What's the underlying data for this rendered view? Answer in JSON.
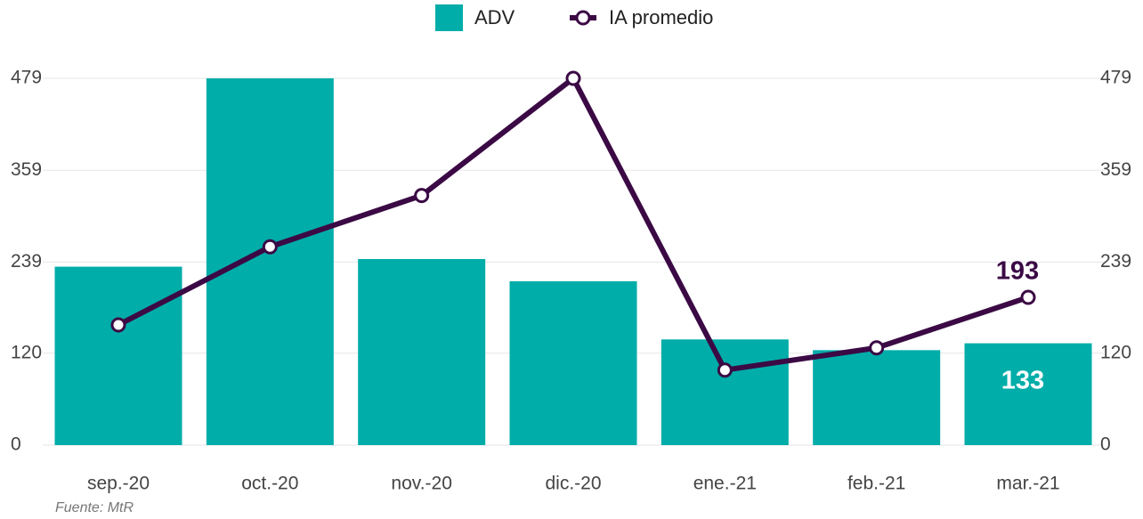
{
  "chart_data": {
    "type": "bar-line",
    "categories": [
      "sep.-20",
      "oct.-20",
      "nov.-20",
      "dic.-20",
      "ene.-21",
      "feb.-21",
      "mar.-21"
    ],
    "series": [
      {
        "name": "ADV",
        "type": "bar",
        "color": "#00ADA9",
        "values": [
          233,
          479,
          243,
          214,
          138,
          124,
          133
        ]
      },
      {
        "name": "IA promedio",
        "type": "line",
        "axis": "y2",
        "color": "#3B0A45",
        "values": [
          157,
          259,
          326,
          479,
          98,
          127,
          193
        ]
      }
    ],
    "ylim": [
      0,
      479
    ],
    "yticks": [
      0,
      120,
      239,
      359,
      479
    ],
    "y2lim": [
      0,
      479
    ],
    "y2ticks": [
      0,
      120,
      239,
      359,
      479
    ],
    "grid": true,
    "legend": "top",
    "source": "Fuente: MtR"
  }
}
